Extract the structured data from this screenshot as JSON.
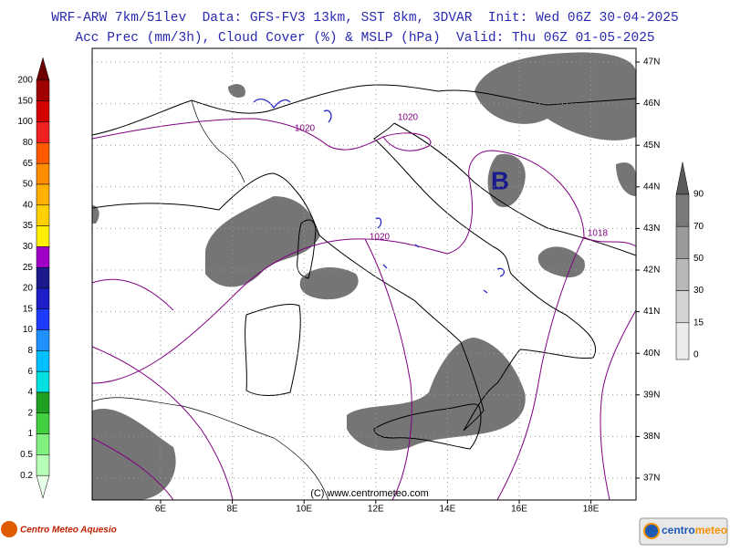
{
  "header": {
    "line1": "WRF-ARW 7km/51lev  Data: GFS-FV3 13km, SST 8km, 3DVAR  Init: Wed 06Z 30-04-2025",
    "line2": "Acc Prec (mm/3h), Cloud Cover (%) & MSLP (hPa)  Valid: Thu 06Z 01-05-2025"
  },
  "precip_legend": {
    "labels": [
      "200",
      "150",
      "100",
      "80",
      "65",
      "50",
      "40",
      "35",
      "30",
      "25",
      "20",
      "15",
      "10",
      "8",
      "6",
      "4",
      "2",
      "1",
      "0.5",
      "0.2"
    ],
    "colors": [
      "#6b0000",
      "#a00000",
      "#d40000",
      "#f02020",
      "#ff5a00",
      "#ff8c00",
      "#ffb000",
      "#ffd000",
      "#ffee00",
      "#a000c8",
      "#1a1a8c",
      "#1e1ec8",
      "#1e3cff",
      "#1e90ff",
      "#00bfff",
      "#00e0e0",
      "#20a020",
      "#40d040",
      "#80f080",
      "#b8ffb8",
      "#e8ffe8"
    ]
  },
  "cloud_legend": {
    "labels": [
      "90",
      "70",
      "50",
      "30",
      "15",
      "0"
    ],
    "colors": [
      "#5a5a5a",
      "#7a7a7a",
      "#9a9a9a",
      "#b8b8b8",
      "#d4d4d4",
      "#ececec"
    ]
  },
  "lat_labels": [
    "47N",
    "46N",
    "45N",
    "44N",
    "43N",
    "42N",
    "41N",
    "40N",
    "39N",
    "38N",
    "37N"
  ],
  "lon_labels": [
    "6E",
    "8E",
    "10E",
    "12E",
    "14E",
    "16E",
    "18E"
  ],
  "isobar_labels": [
    "1020",
    "1020",
    "1020",
    "1018"
  ],
  "pressure_center": "B",
  "copyright": "(C) www.centrometeo.com",
  "logos": {
    "left": "Centro Meteo Aquesio",
    "right_a": "centro",
    "right_b": "meteo"
  }
}
